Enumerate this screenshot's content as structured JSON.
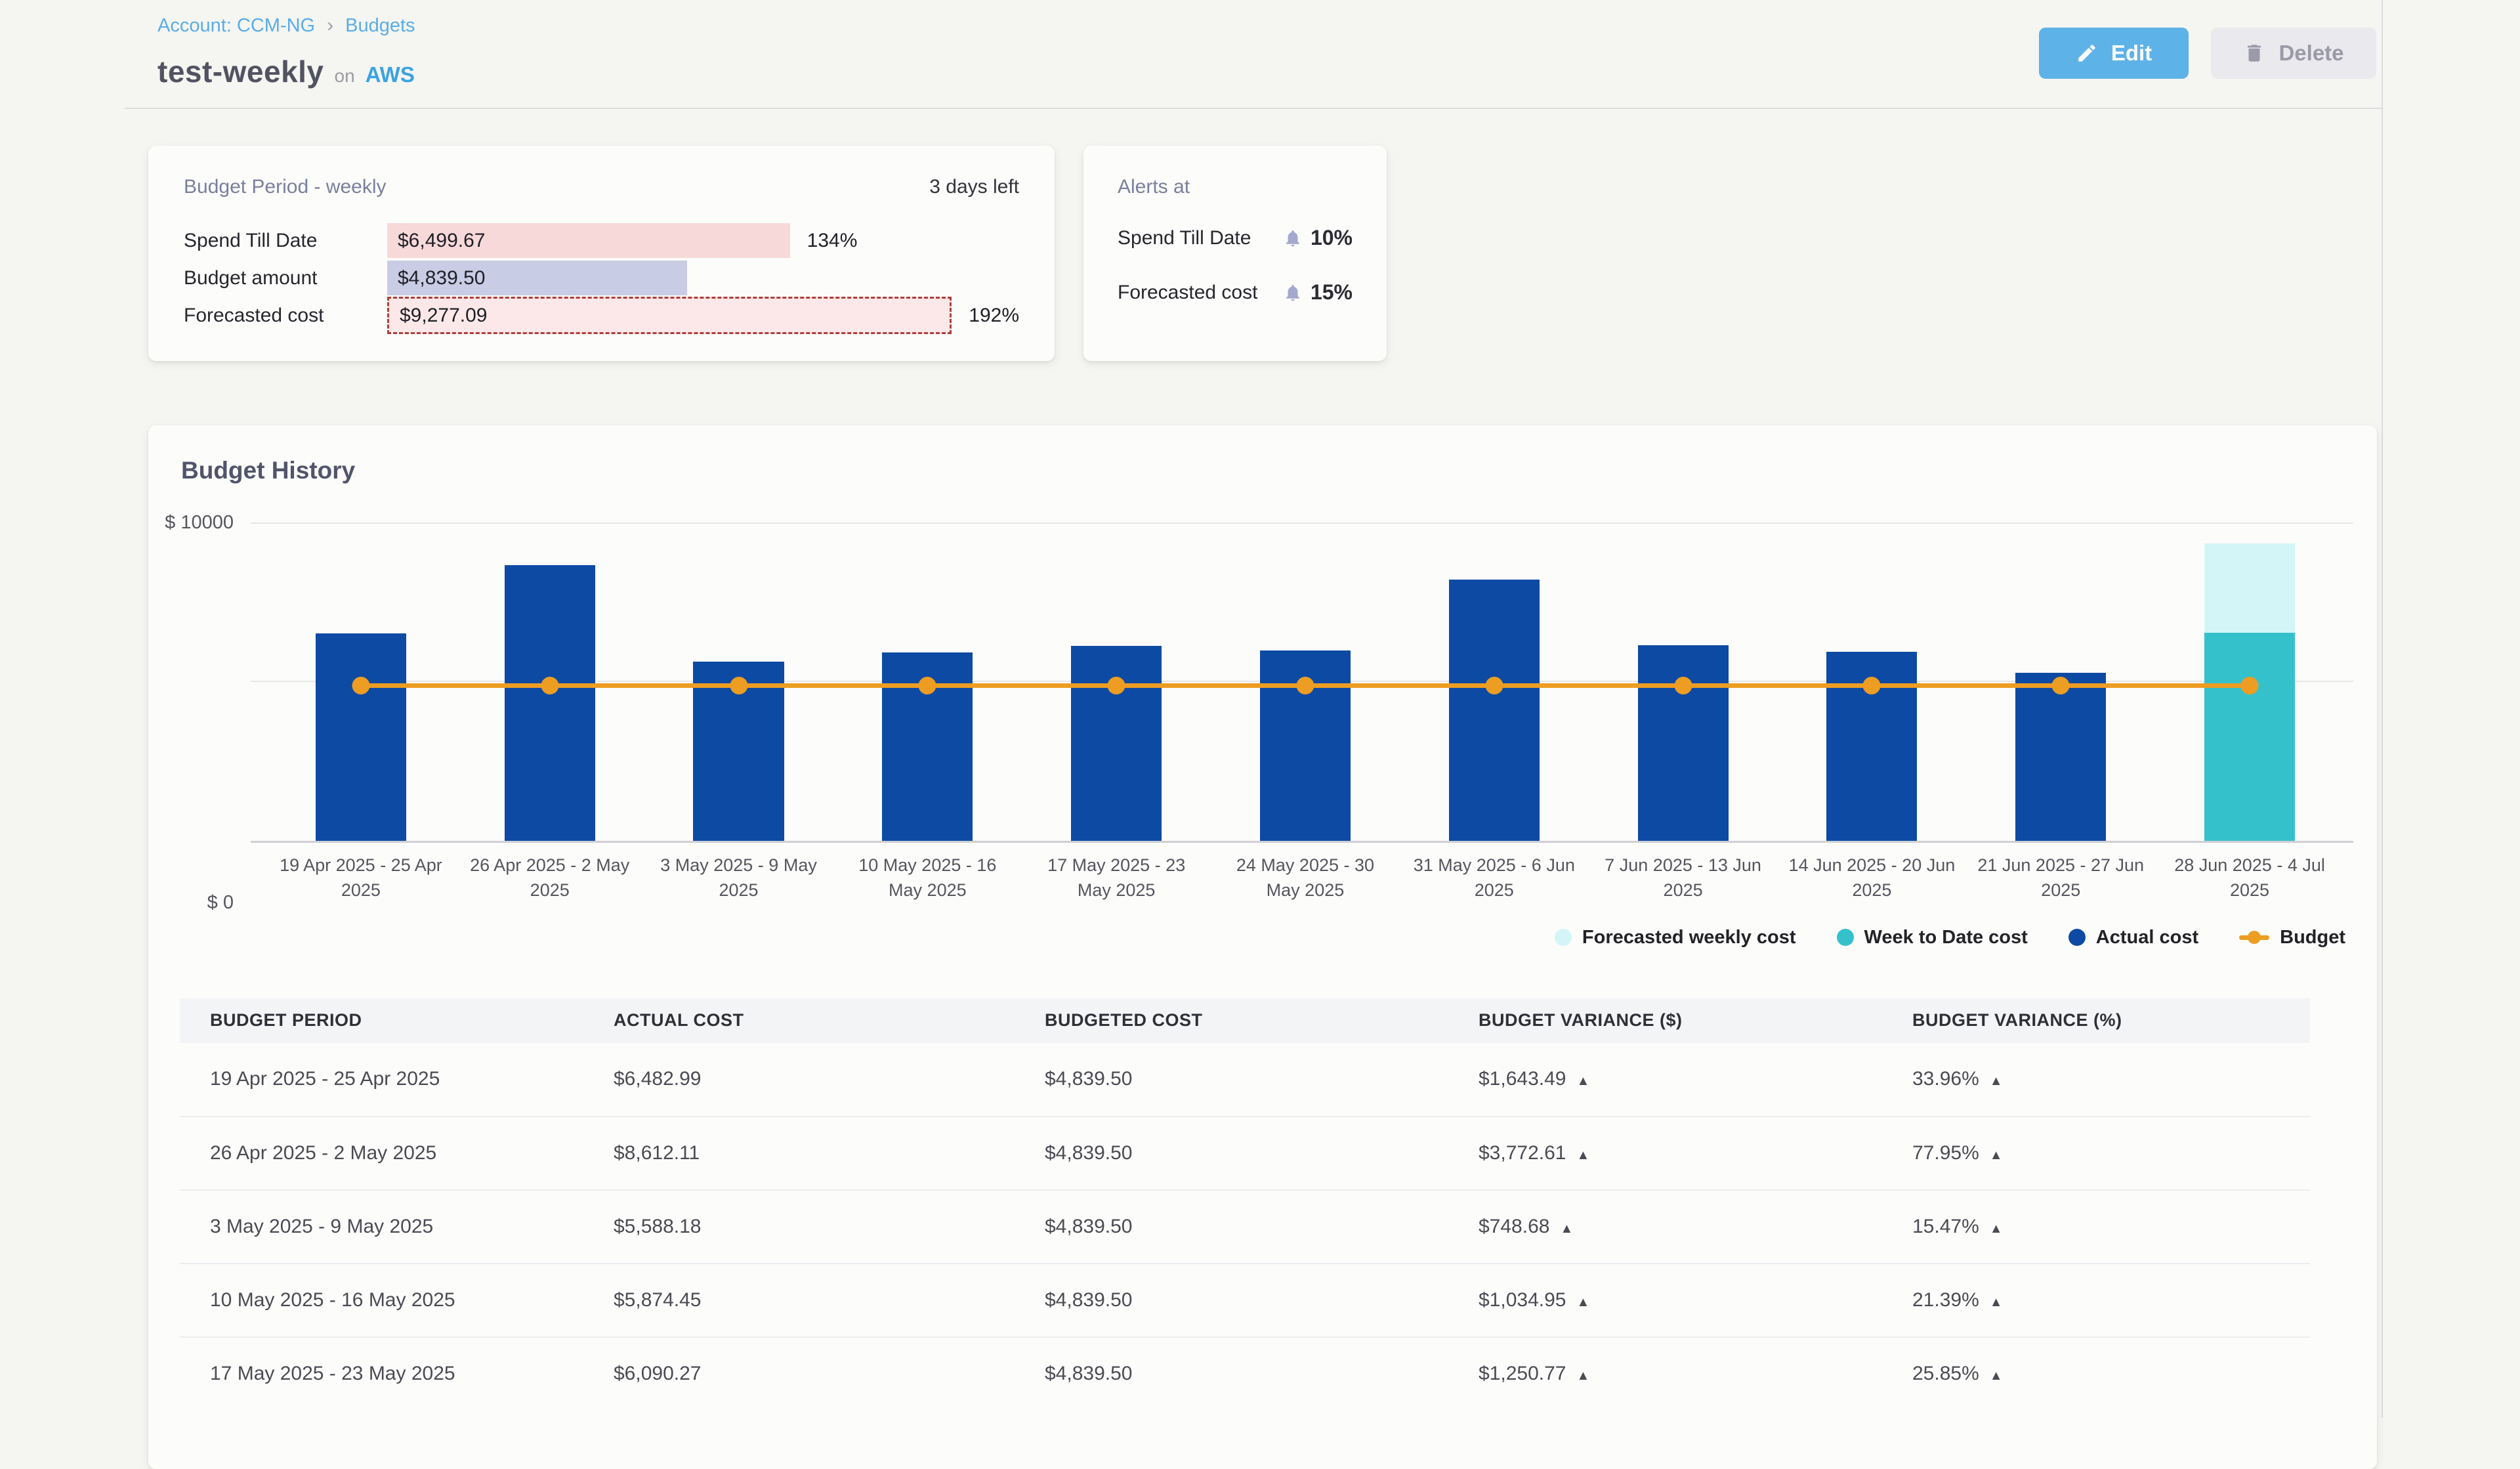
{
  "breadcrumb": {
    "account": "Account: CCM-NG",
    "separator": "›",
    "current": "Budgets"
  },
  "header": {
    "title": "test-weekly",
    "connector": "on",
    "provider": "AWS",
    "edit_button": "Edit",
    "delete_button": "Delete"
  },
  "budget_period_card": {
    "title": "Budget Period - weekly",
    "time_remaining": "3 days left",
    "bar_scale_max": 10200,
    "rows": [
      {
        "label": "Spend Till Date",
        "amount": "$6,499.67",
        "value": 6499.67,
        "percent": "134%",
        "kind": "spend"
      },
      {
        "label": "Budget amount",
        "amount": "$4,839.50",
        "value": 4839.5,
        "percent": "",
        "kind": "budget"
      },
      {
        "label": "Forecasted cost",
        "amount": "$9,277.09",
        "value": 9277.09,
        "percent": "192%",
        "kind": "forecast"
      }
    ]
  },
  "alerts_card": {
    "title": "Alerts at",
    "rows": [
      {
        "label": "Spend Till Date",
        "threshold": "10%"
      },
      {
        "label": "Forecasted cost",
        "threshold": "15%"
      }
    ]
  },
  "chart_section": {
    "title": "Budget History",
    "y_axis_top_label": "$ 10000",
    "y_axis_bottom_label": "$ 0"
  },
  "chart_data": {
    "type": "bar",
    "title": "Budget History",
    "ylabel": "$",
    "ylim": [
      0,
      10000
    ],
    "grid": "horizontal gridlines at 10000 and at budget level",
    "legend_position": "bottom-right",
    "categories": [
      "19 Apr 2025 - 25 Apr 2025",
      "26 Apr 2025 - 2 May 2025",
      "3 May 2025 - 9 May 2025",
      "10 May 2025 - 16 May 2025",
      "17 May 2025 - 23 May 2025",
      "24 May 2025 - 30 May 2025",
      "31 May 2025 - 6 Jun 2025",
      "7 Jun 2025 - 13 Jun 2025",
      "14 Jun 2025 - 20 Jun 2025",
      "21 Jun 2025 - 27 Jun 2025",
      "28 Jun 2025 - 4 Jul 2025"
    ],
    "series": [
      {
        "name": "Actual cost",
        "color": "#0d4aa3",
        "values": [
          6482.99,
          8612.11,
          5588.18,
          5874.45,
          6090.27,
          5950,
          8150,
          6100,
          5900,
          5250,
          null
        ],
        "note": "weeks 6-10 estimated from bar heights (not labeled on screen)"
      },
      {
        "name": "Week to Date cost",
        "color": "#35c1cc",
        "values": [
          null,
          null,
          null,
          null,
          null,
          null,
          null,
          null,
          null,
          null,
          6499.67
        ]
      },
      {
        "name": "Forecasted weekly cost",
        "color": "#d3f5f8",
        "values": [
          null,
          null,
          null,
          null,
          null,
          null,
          null,
          null,
          null,
          null,
          9277.09
        ]
      },
      {
        "name": "Budget",
        "type": "line",
        "color": "#ec9d22",
        "values": [
          4839.5,
          4839.5,
          4839.5,
          4839.5,
          4839.5,
          4839.5,
          4839.5,
          4839.5,
          4839.5,
          4839.5,
          4839.5
        ]
      }
    ],
    "legend": [
      "Forecasted weekly cost",
      "Week to Date cost",
      "Actual cost",
      "Budget"
    ]
  },
  "table": {
    "headers": [
      "BUDGET PERIOD",
      "ACTUAL COST",
      "BUDGETED COST",
      "BUDGET VARIANCE ($)",
      "BUDGET VARIANCE (%)"
    ],
    "up_arrow": "▲",
    "rows": [
      {
        "period": "19 Apr 2025 - 25 Apr 2025",
        "actual_cost": "$6,482.99",
        "budgeted_cost": "$4,839.50",
        "variance_usd": "$1,643.49",
        "variance_pct": "33.96%"
      },
      {
        "period": "26 Apr 2025 - 2 May 2025",
        "actual_cost": "$8,612.11",
        "budgeted_cost": "$4,839.50",
        "variance_usd": "$3,772.61",
        "variance_pct": "77.95%"
      },
      {
        "period": "3 May 2025 - 9 May 2025",
        "actual_cost": "$5,588.18",
        "budgeted_cost": "$4,839.50",
        "variance_usd": "$748.68",
        "variance_pct": "15.47%"
      },
      {
        "period": "10 May 2025 - 16 May 2025",
        "actual_cost": "$5,874.45",
        "budgeted_cost": "$4,839.50",
        "variance_usd": "$1,034.95",
        "variance_pct": "21.39%"
      },
      {
        "period": "17 May 2025 - 23 May 2025",
        "actual_cost": "$6,090.27",
        "budgeted_cost": "$4,839.50",
        "variance_usd": "$1,250.77",
        "variance_pct": "25.85%"
      }
    ]
  },
  "colors": {
    "actual_cost": "#0d4aa3",
    "week_to_date": "#35c1cc",
    "forecasted_weekly": "#d3f5f8",
    "budget_line": "#ec9d22",
    "variance_up": "#e3736c",
    "accent_blue": "#5aade8",
    "edit_button_bg": "#5db2e7",
    "spend_bar": "#f7d9da",
    "budget_bar": "#c8cde5",
    "forecast_bar_bg": "#fce8e8",
    "forecast_bar_border": "#ae3e3b",
    "alert_bell": "#a4a8cd"
  }
}
